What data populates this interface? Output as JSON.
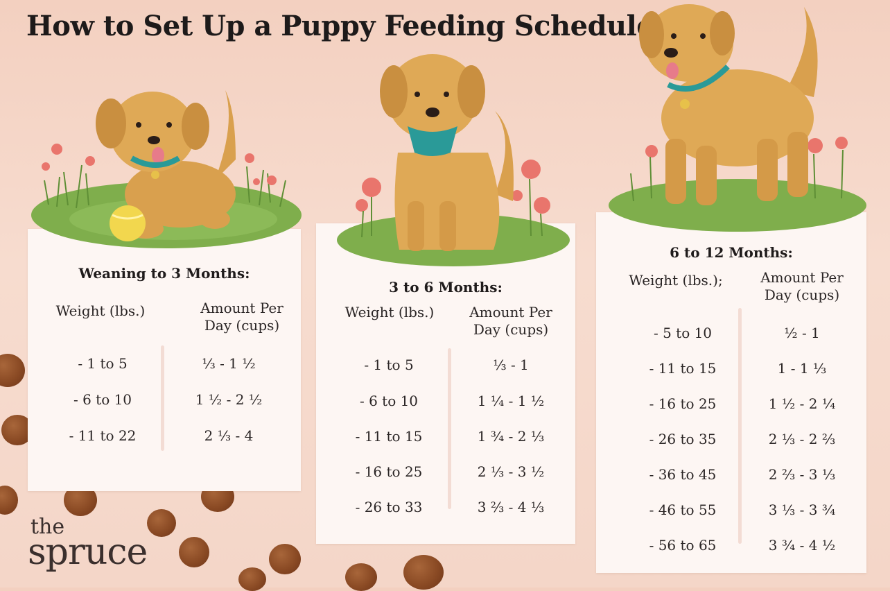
{
  "title": "How to Set Up a Puppy Feeding Schedule",
  "logo": {
    "line1": "the",
    "line2": "spruce"
  },
  "colors": {
    "background": "#f5d5c6",
    "card": "#fdf6f3",
    "dog_fur": "#d9a04e",
    "grass": "#7fae4c",
    "collar": "#2a9a98",
    "flowers": "#e9756c",
    "kibble": "#8a4a24"
  },
  "illustrations": [
    {
      "icon": "puppy-with-ball-icon",
      "label": ""
    },
    {
      "icon": "sitting-puppy-icon",
      "label": ""
    },
    {
      "icon": "standing-dog-icon",
      "label": ""
    }
  ],
  "cards": [
    {
      "heading": "Weaning to 3 Months:",
      "col1_header": "Weight (lbs.)",
      "col2_header_line1": "Amount Per",
      "col2_header_line2": "Day (cups)",
      "rows": [
        {
          "weight": "- 1 to 5",
          "amount": "⅓ - 1 ½"
        },
        {
          "weight": "- 6 to 10",
          "amount": "1 ½ - 2 ½"
        },
        {
          "weight": "- 11 to 22",
          "amount": "2 ⅓ - 4"
        }
      ]
    },
    {
      "heading": "3 to 6 Months:",
      "col1_header": "Weight (lbs.)",
      "col2_header_line1": "Amount Per",
      "col2_header_line2": "Day (cups)",
      "rows": [
        {
          "weight": "- 1 to 5",
          "amount": "⅓ - 1"
        },
        {
          "weight": "- 6 to 10",
          "amount": "1 ¼ - 1 ½"
        },
        {
          "weight": "- 11 to 15",
          "amount": "1 ¾ - 2 ⅓"
        },
        {
          "weight": "- 16 to 25",
          "amount": "2 ⅓ - 3 ½"
        },
        {
          "weight": "- 26 to 33",
          "amount": "3 ⅔ - 4 ⅓"
        }
      ]
    },
    {
      "heading": "6 to 12 Months:",
      "col1_header": "Weight (lbs.);",
      "col2_header_line1": "Amount Per",
      "col2_header_line2": "Day (cups)",
      "rows": [
        {
          "weight": "- 5 to 10",
          "amount": "½ - 1"
        },
        {
          "weight": "- 11 to 15",
          "amount": "1 - 1 ⅓"
        },
        {
          "weight": "- 16 to 25",
          "amount": "1 ½ - 2 ¼"
        },
        {
          "weight": "- 26 to 35",
          "amount": "2 ⅓ - 2 ⅔"
        },
        {
          "weight": "- 36 to 45",
          "amount": "2 ⅔ - 3 ⅓"
        },
        {
          "weight": "- 46 to 55",
          "amount": "3 ⅓ - 3 ¾"
        },
        {
          "weight": "- 56 to 65",
          "amount": "3 ¾ - 4 ½"
        }
      ]
    }
  ]
}
